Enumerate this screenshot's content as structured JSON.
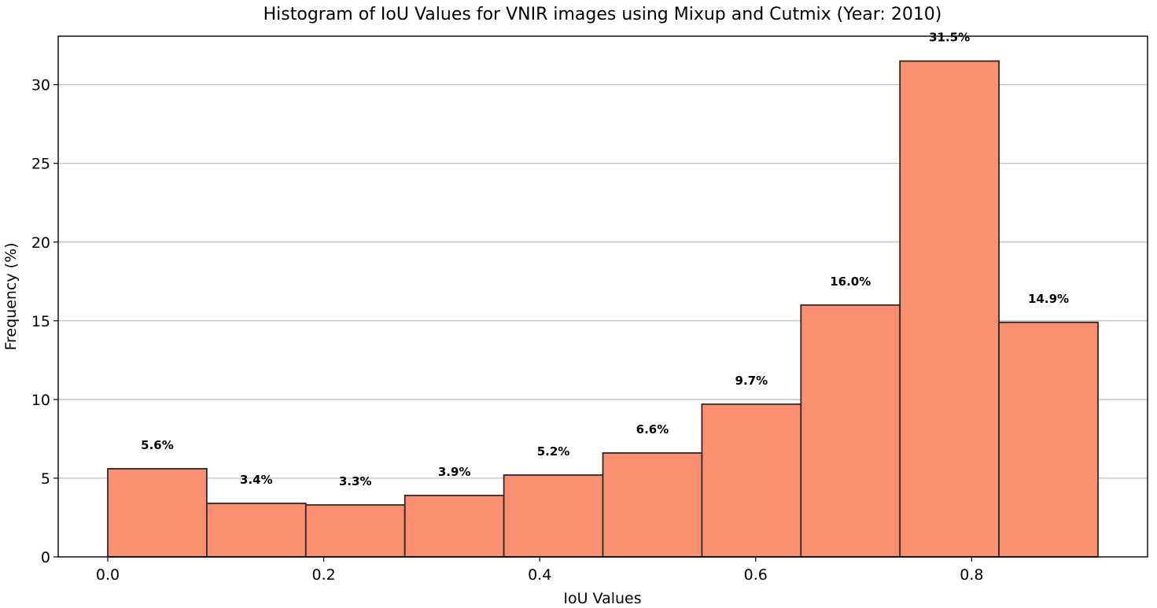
{
  "chart_data": {
    "type": "bar",
    "title": "Histogram of IoU Values for VNIR images using Mixup and Cutmix (Year: 2010)",
    "xlabel": "IoU Values",
    "ylabel": "Frequency (%)",
    "bin_edges": [
      0.0,
      0.0917,
      0.1834,
      0.2751,
      0.3668,
      0.4585,
      0.5502,
      0.6419,
      0.7336,
      0.8253,
      0.917
    ],
    "values": [
      5.6,
      3.4,
      3.3,
      3.9,
      5.2,
      6.6,
      9.7,
      16.0,
      31.5,
      14.9
    ],
    "value_labels": [
      "5.6%",
      "3.4%",
      "3.3%",
      "3.9%",
      "5.2%",
      "6.6%",
      "9.7%",
      "16.0%",
      "31.5%",
      "14.9%"
    ],
    "xlim": [
      -0.0459,
      0.9629
    ],
    "ylim": [
      0,
      33.08
    ],
    "xticks": [
      0.0,
      0.2,
      0.4,
      0.6,
      0.8
    ],
    "xtick_labels": [
      "0.0",
      "0.2",
      "0.4",
      "0.6",
      "0.8"
    ],
    "yticks": [
      0,
      5,
      10,
      15,
      20,
      25,
      30
    ],
    "ytick_labels": [
      "0",
      "5",
      "10",
      "15",
      "20",
      "25",
      "30"
    ],
    "grid": "y",
    "bar_color": "#fa8f72",
    "edge_color": "#2b2b2b"
  }
}
